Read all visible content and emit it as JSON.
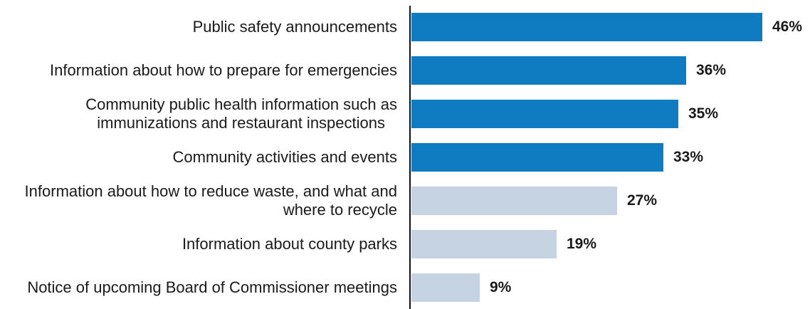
{
  "chart_data": {
    "type": "bar",
    "orientation": "horizontal",
    "categories": [
      [
        "Public safety announcements"
      ],
      [
        "Information about how to prepare for emergencies"
      ],
      [
        "Community public health information such as",
        "immunizations and restaurant inspections"
      ],
      [
        "Community activities and events"
      ],
      [
        "Information about how to reduce waste, and what and",
        "where to recycle"
      ],
      [
        "Information about county parks"
      ],
      [
        "Notice of upcoming Board of Commissioner meetings"
      ]
    ],
    "values": [
      46,
      36,
      35,
      33,
      27,
      19,
      9
    ],
    "value_labels": [
      "46%",
      "36%",
      "35%",
      "33%",
      "27%",
      "19%",
      "9%"
    ],
    "bar_colors": [
      "#0f7bc0",
      "#0f7bc0",
      "#0f7bc0",
      "#0f7bc0",
      "#c6d3e3",
      "#c6d3e3",
      "#c6d3e3"
    ],
    "title": "",
    "xlabel": "",
    "ylabel": "",
    "xlim": [
      0,
      46
    ],
    "grid": false,
    "legend": "none"
  }
}
